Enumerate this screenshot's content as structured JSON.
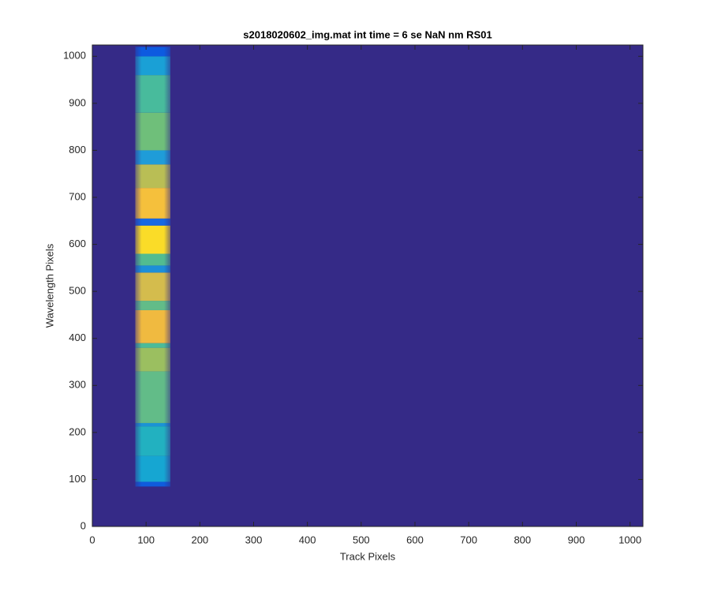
{
  "chart_data": {
    "type": "image",
    "title": "s2018020602_img.mat int time = 6 se  NaN nm RS01",
    "x_label": "Track Pixels",
    "y_label": "Wavelength Pixels",
    "xlim": [
      0,
      1024
    ],
    "ylim": [
      0,
      1024
    ],
    "xticks": [
      0,
      100,
      200,
      300,
      400,
      500,
      600,
      700,
      800,
      900,
      1000
    ],
    "yticks": [
      0,
      100,
      200,
      300,
      400,
      500,
      600,
      700,
      800,
      900,
      1000
    ],
    "background_color": "#352a87",
    "track_x": [
      80,
      145
    ],
    "bands": [
      {
        "from": 85,
        "to": 95,
        "color": "#0f5cdd"
      },
      {
        "from": 95,
        "to": 150,
        "color": "#16a6d2"
      },
      {
        "from": 150,
        "to": 213,
        "color": "#22b1c0"
      },
      {
        "from": 213,
        "to": 220,
        "color": "#1b93d4"
      },
      {
        "from": 220,
        "to": 330,
        "color": "#62bc88"
      },
      {
        "from": 330,
        "to": 380,
        "color": "#9bbf60"
      },
      {
        "from": 380,
        "to": 390,
        "color": "#4cbb98"
      },
      {
        "from": 390,
        "to": 460,
        "color": "#f0ba40"
      },
      {
        "from": 460,
        "to": 480,
        "color": "#62bc88"
      },
      {
        "from": 480,
        "to": 540,
        "color": "#d4bc4d"
      },
      {
        "from": 540,
        "to": 555,
        "color": "#1c8fd8"
      },
      {
        "from": 555,
        "to": 580,
        "color": "#52bc90"
      },
      {
        "from": 580,
        "to": 640,
        "color": "#fadc28"
      },
      {
        "from": 640,
        "to": 655,
        "color": "#1769e2"
      },
      {
        "from": 655,
        "to": 720,
        "color": "#f5c03c"
      },
      {
        "from": 720,
        "to": 770,
        "color": "#b9be55"
      },
      {
        "from": 770,
        "to": 800,
        "color": "#1f9cd8"
      },
      {
        "from": 800,
        "to": 880,
        "color": "#6fbf7a"
      },
      {
        "from": 880,
        "to": 960,
        "color": "#48bb9c"
      },
      {
        "from": 960,
        "to": 1000,
        "color": "#1aa0d6"
      },
      {
        "from": 1000,
        "to": 1020,
        "color": "#0d5be0"
      }
    ]
  }
}
